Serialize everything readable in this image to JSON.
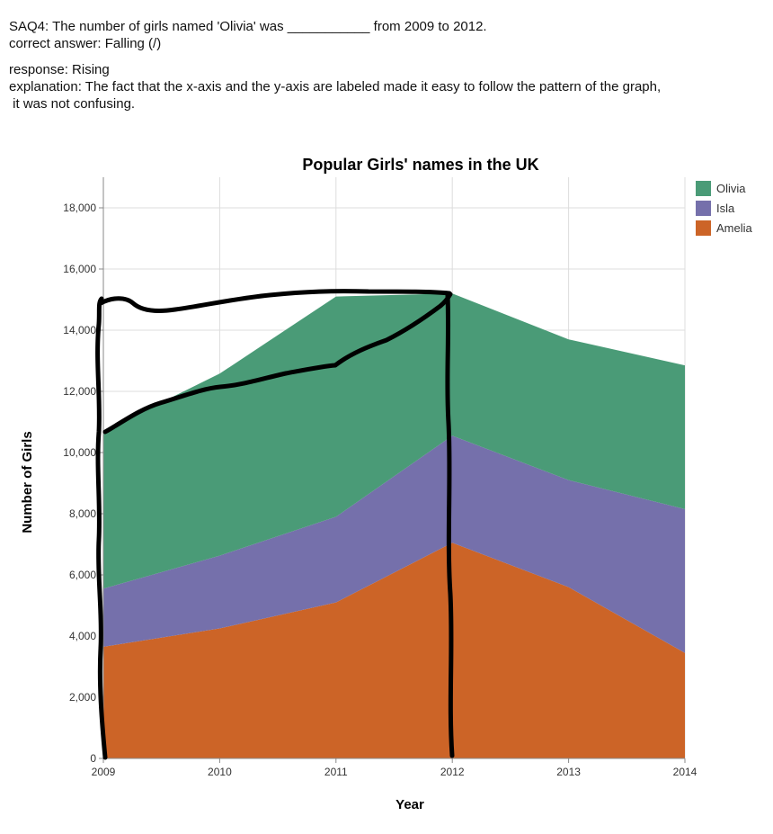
{
  "qa": {
    "question": "SAQ4: The number of girls named 'Olivia' was ___________ from 2009 to 2012.",
    "correct": "correct answer: Falling (/)",
    "response": "response: Rising",
    "explanation_1": "explanation: The fact that the x-axis and the y-axis are labeled made it easy to follow the pattern of the graph,",
    "explanation_2": " it was not confusing."
  },
  "chart_data": {
    "type": "area",
    "stacked": true,
    "title": "Popular Girls' names in the UK",
    "xlabel": "Year",
    "ylabel": "Number of Girls",
    "x": [
      2009,
      2010,
      2011,
      2012,
      2013,
      2014
    ],
    "x_tick_labels": [
      "2009",
      "2010",
      "2011",
      "2012",
      "2013",
      "2014"
    ],
    "ylim": [
      0,
      19000
    ],
    "y_ticks": [
      0,
      2000,
      4000,
      6000,
      8000,
      10000,
      12000,
      14000,
      16000,
      18000
    ],
    "y_tick_labels": [
      "0",
      "2,000",
      "4,000",
      "6,000",
      "8,000",
      "10,000",
      "12,000",
      "14,000",
      "16,000",
      "18,000"
    ],
    "grid": true,
    "legend": "top-right",
    "series": [
      {
        "name": "Amelia",
        "color": "#cc6427",
        "values": [
          3650,
          4250,
          5100,
          7050,
          5600,
          3450
        ]
      },
      {
        "name": "Isla",
        "color": "#7570ab",
        "values": [
          1900,
          2380,
          2800,
          3500,
          3500,
          4700
        ]
      },
      {
        "name": "Olivia",
        "color": "#4a9b77",
        "values": [
          5150,
          5950,
          7200,
          4650,
          4600,
          4700
        ]
      }
    ],
    "legend_order": [
      "Olivia",
      "Isla",
      "Amelia"
    ]
  }
}
